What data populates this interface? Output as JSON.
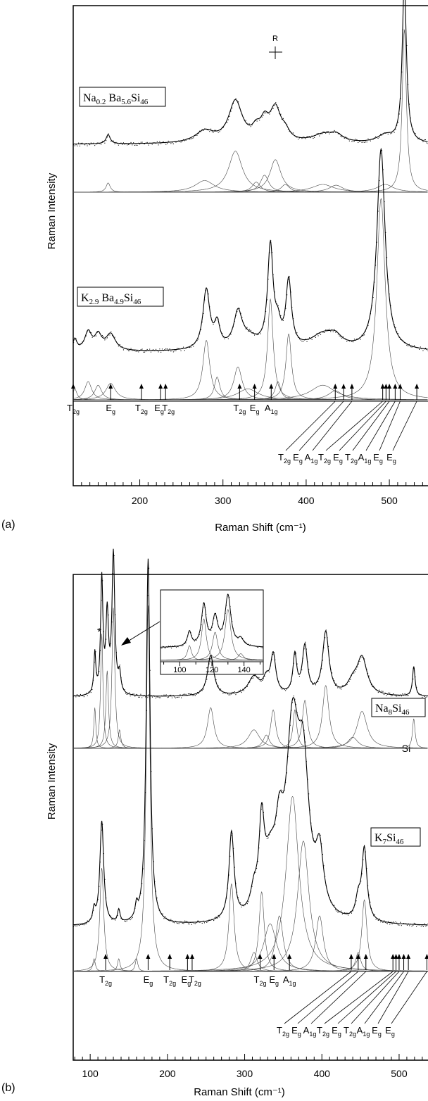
{
  "chart_data": [
    {
      "panel_label": "(a)",
      "type": "line",
      "xlabel": "Raman Shift (cm⁻¹)",
      "ylabel": "Raman Intensity",
      "xlim": [
        120,
        560
      ],
      "xticks": [
        200,
        300,
        400,
        500
      ],
      "grid": false,
      "samples": [
        {
          "name": "Na0.2Ba5.6Si46",
          "name_parts": [
            "Na",
            "0.2",
            " Ba",
            "5.6",
            "Si",
            "46"
          ],
          "peaks": [
            [
              162,
              0.12,
              3
            ],
            [
              278,
              0.15,
              14
            ],
            [
              315,
              0.53,
              10
            ],
            [
              340,
              0.13,
              6
            ],
            [
              350,
              0.22,
              6
            ],
            [
              363,
              0.42,
              8
            ],
            [
              375,
              0.1,
              6
            ],
            [
              420,
              0.1,
              16
            ],
            [
              436,
              0.09,
              10
            ],
            [
              495,
              0.1,
              12
            ],
            [
              518,
              2.1,
              3
            ]
          ]
        },
        {
          "name": "K2.9Ba4.9Si46",
          "name_parts": [
            "K",
            "2.9",
            " Ba",
            "4.9",
            "Si",
            "46"
          ],
          "peaks": [
            [
              122,
              0.12,
              3
            ],
            [
              138,
              0.2,
              5
            ],
            [
              150,
              0.16,
              5
            ],
            [
              165,
              0.18,
              7
            ],
            [
              280,
              0.65,
              5
            ],
            [
              293,
              0.25,
              4
            ],
            [
              318,
              0.36,
              6
            ],
            [
              330,
              0.12,
              15
            ],
            [
              357,
              1.1,
              4
            ],
            [
              366,
              0.2,
              4
            ],
            [
              379,
              0.72,
              4
            ],
            [
              420,
              0.16,
              18
            ],
            [
              435,
              0.1,
              10
            ],
            [
              490,
              2.2,
              6
            ]
          ]
        }
      ],
      "annotation": "R",
      "assignments": [
        {
          "x": 120,
          "label": "T",
          "sub": "2g"
        },
        {
          "x": 165,
          "label": "E",
          "sub": "g"
        },
        {
          "x": 202,
          "label": "T",
          "sub": "2g"
        },
        {
          "x": 225,
          "label": "E",
          "sub": "g"
        },
        {
          "x": 231,
          "label": "T",
          "sub": "2g"
        },
        {
          "x": 320,
          "label": "T",
          "sub": "2g"
        },
        {
          "x": 338,
          "label": "E",
          "sub": "g"
        },
        {
          "x": 358,
          "label": "A",
          "sub": "1g"
        },
        {
          "x": 435,
          "label": "T",
          "sub": "2g"
        },
        {
          "x": 445,
          "label": "E",
          "sub": "g"
        },
        {
          "x": 455,
          "label": "A",
          "sub": "1g"
        },
        {
          "x": 492,
          "label": "T",
          "sub": "2g"
        },
        {
          "x": 496,
          "label": "E",
          "sub": "g"
        },
        {
          "x": 500,
          "label": "T",
          "sub": "2g"
        },
        {
          "x": 507,
          "label": "A",
          "sub": "1g"
        },
        {
          "x": 513,
          "label": "E",
          "sub": "g"
        },
        {
          "x": 533,
          "label": "E",
          "sub": "g"
        }
      ]
    },
    {
      "panel_label": "(b)",
      "type": "line",
      "xlabel": "Raman Shift (cm⁻¹)",
      "ylabel": "Raman Intensity",
      "xlim": [
        78,
        552
      ],
      "xticks": [
        100,
        200,
        300,
        400,
        500
      ],
      "grid": false,
      "samples": [
        {
          "name": "Na8Si46",
          "name_parts": [
            "Na",
            "8",
            "",
            "",
            "Si",
            "46"
          ],
          "peaks": [
            [
              106,
              0.55,
              1.5
            ],
            [
              115,
              1.55,
              1.8
            ],
            [
              122,
              1.05,
              2
            ],
            [
              130,
              1.9,
              2.2
            ],
            [
              138,
              0.25,
              2
            ],
            [
              256,
              0.55,
              5
            ],
            [
              312,
              0.25,
              9
            ],
            [
              328,
              0.18,
              5
            ],
            [
              337,
              0.52,
              4
            ],
            [
              365,
              0.52,
              3
            ],
            [
              378,
              0.65,
              4
            ],
            [
              405,
              0.85,
              5
            ],
            [
              440,
              0.15,
              8
            ],
            [
              452,
              0.5,
              8
            ],
            [
              519,
              0.4,
              2
            ]
          ]
        },
        {
          "name": "K7Si46",
          "name_parts": [
            "K",
            "7",
            "",
            "",
            "Si",
            "46"
          ],
          "peaks": [
            [
              105,
              0.08,
              2
            ],
            [
              115,
              0.65,
              3
            ],
            [
              137,
              0.08,
              2
            ],
            [
              160,
              0.08,
              2
            ],
            [
              175,
              2.3,
              3
            ],
            [
              283,
              0.55,
              4
            ],
            [
              312,
              0.12,
              5
            ],
            [
              322,
              0.5,
              4
            ],
            [
              333,
              0.3,
              10
            ],
            [
              345,
              0.35,
              6
            ],
            [
              362,
              1.1,
              10
            ],
            [
              376,
              0.82,
              9
            ],
            [
              397,
              0.35,
              6
            ],
            [
              447,
              0.12,
              4
            ],
            [
              455,
              0.45,
              4
            ]
          ]
        }
      ],
      "inset": {
        "xlim": [
          88,
          152
        ],
        "xticks": [
          100,
          120,
          140
        ]
      },
      "annotations": [
        "*",
        "Si"
      ],
      "assignments": [
        {
          "x": 120,
          "label": "T",
          "sub": "2g"
        },
        {
          "x": 175,
          "label": "E",
          "sub": "g"
        },
        {
          "x": 203,
          "label": "T",
          "sub": "2g"
        },
        {
          "x": 226,
          "label": "E",
          "sub": "g"
        },
        {
          "x": 232,
          "label": "T",
          "sub": "2g"
        },
        {
          "x": 320,
          "label": "T",
          "sub": "2g"
        },
        {
          "x": 338,
          "label": "E",
          "sub": "g"
        },
        {
          "x": 358,
          "label": "A",
          "sub": "1g"
        },
        {
          "x": 438,
          "label": "T",
          "sub": "2g"
        },
        {
          "x": 447,
          "label": "E",
          "sub": "g"
        },
        {
          "x": 457,
          "label": "A",
          "sub": "1g"
        },
        {
          "x": 492,
          "label": "T",
          "sub": "2g"
        },
        {
          "x": 496,
          "label": "E",
          "sub": "g"
        },
        {
          "x": 500,
          "label": "T",
          "sub": "2g"
        },
        {
          "x": 506,
          "label": "A",
          "sub": "1g"
        },
        {
          "x": 512,
          "label": "E",
          "sub": "g"
        },
        {
          "x": 536,
          "label": "E",
          "sub": "g"
        }
      ]
    }
  ]
}
